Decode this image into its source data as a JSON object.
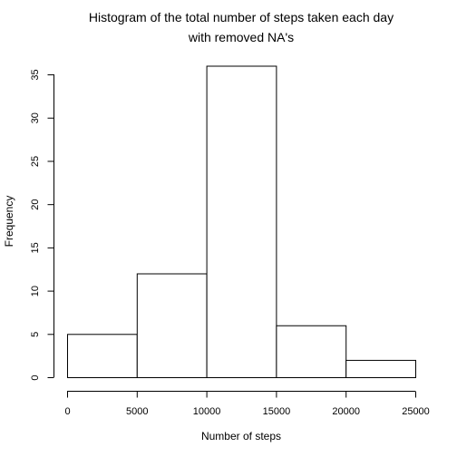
{
  "chart_data": {
    "type": "bar",
    "title_lines": [
      "Histogram of the total number of steps taken each day",
      "with removed NA's"
    ],
    "xlabel": "Number of steps",
    "ylabel": "Frequency",
    "bins": [
      {
        "start": 0,
        "end": 5000,
        "count": 5
      },
      {
        "start": 5000,
        "end": 10000,
        "count": 12
      },
      {
        "start": 10000,
        "end": 15000,
        "count": 36
      },
      {
        "start": 15000,
        "end": 20000,
        "count": 6
      },
      {
        "start": 20000,
        "end": 25000,
        "count": 2
      }
    ],
    "xlim": [
      0,
      25000
    ],
    "ylim": [
      0,
      36
    ],
    "x_ticks": [
      0,
      5000,
      10000,
      15000,
      20000,
      25000
    ],
    "y_ticks": [
      0,
      5,
      10,
      15,
      20,
      25,
      30,
      35
    ],
    "grid": false,
    "legend": "none",
    "bar_fill": "#ffffff",
    "bar_stroke": "#000000"
  }
}
